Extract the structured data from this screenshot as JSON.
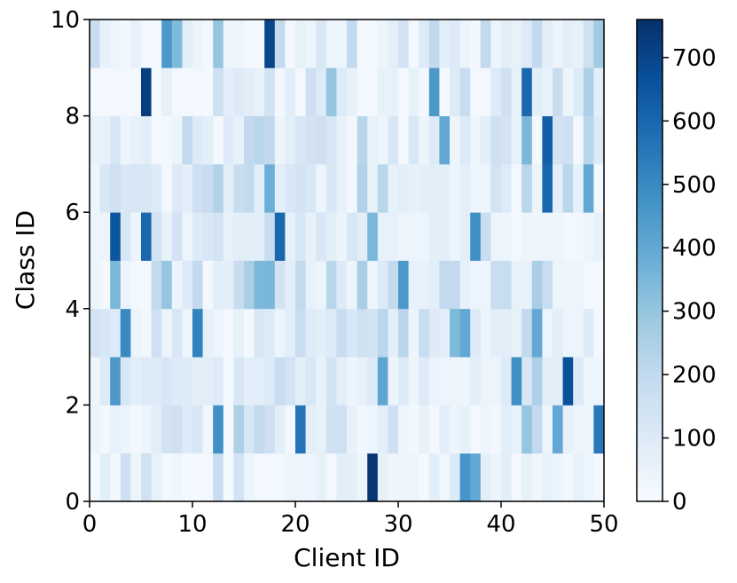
{
  "chart_data": {
    "type": "heatmap",
    "title": "",
    "xlabel": "Client ID",
    "ylabel": "Class ID",
    "xlim": [
      0,
      50
    ],
    "ylim": [
      0,
      10
    ],
    "x_ticks": [
      "0",
      "10",
      "20",
      "30",
      "40",
      "50"
    ],
    "y_ticks": [
      "0",
      "2",
      "4",
      "6",
      "8",
      "10"
    ],
    "colorbar": {
      "min": 0,
      "max": 760,
      "ticks": [
        "0",
        "100",
        "200",
        "300",
        "400",
        "500",
        "600",
        "700"
      ],
      "colormap": "Blues",
      "colors": [
        "#f7fbff",
        "#deebf7",
        "#c6dbef",
        "#9ecae1",
        "#6baed6",
        "#4292c6",
        "#2171b5",
        "#08519c",
        "#08306b"
      ]
    },
    "rows": [
      [
        20,
        80,
        20,
        160,
        40,
        150,
        60,
        20,
        30,
        10,
        10,
        20,
        180,
        10,
        140,
        40,
        20,
        20,
        20,
        40,
        40,
        40,
        60,
        20,
        80,
        70,
        40,
        740,
        60,
        30,
        40,
        40,
        10,
        80,
        30,
        100,
        460,
        400,
        80,
        40,
        80,
        20,
        60,
        30,
        60,
        40,
        20,
        60,
        40,
        20
      ],
      [
        40,
        20,
        60,
        40,
        20,
        40,
        80,
        140,
        150,
        100,
        120,
        30,
        480,
        20,
        250,
        130,
        200,
        160,
        80,
        20,
        560,
        70,
        60,
        150,
        160,
        60,
        20,
        40,
        80,
        160,
        40,
        20,
        60,
        20,
        80,
        40,
        60,
        20,
        40,
        20,
        80,
        60,
        300,
        200,
        40,
        400,
        60,
        40,
        40,
        550
      ],
      [
        40,
        100,
        450,
        120,
        80,
        100,
        100,
        120,
        100,
        100,
        80,
        80,
        100,
        20,
        120,
        80,
        80,
        100,
        180,
        140,
        80,
        120,
        60,
        140,
        80,
        40,
        60,
        100,
        410,
        40,
        100,
        40,
        100,
        50,
        40,
        40,
        40,
        80,
        40,
        40,
        100,
        480,
        120,
        250,
        80,
        80,
        660,
        100,
        40,
        40
      ],
      [
        140,
        120,
        100,
        500,
        40,
        20,
        160,
        40,
        120,
        40,
        520,
        60,
        40,
        20,
        60,
        20,
        120,
        100,
        40,
        80,
        180,
        100,
        80,
        100,
        180,
        120,
        160,
        140,
        220,
        80,
        220,
        40,
        180,
        100,
        80,
        340,
        400,
        100,
        40,
        80,
        80,
        60,
        200,
        400,
        40,
        80,
        40,
        40,
        100,
        20
      ],
      [
        40,
        20,
        350,
        40,
        20,
        20,
        200,
        300,
        40,
        100,
        200,
        20,
        80,
        80,
        180,
        260,
        350,
        350,
        140,
        80,
        200,
        60,
        40,
        220,
        100,
        40,
        260,
        40,
        100,
        200,
        450,
        60,
        60,
        80,
        200,
        200,
        60,
        40,
        40,
        180,
        180,
        60,
        60,
        260,
        180,
        40,
        40,
        40,
        20,
        20
      ],
      [
        40,
        40,
        650,
        120,
        40,
        600,
        140,
        60,
        140,
        40,
        100,
        120,
        140,
        60,
        80,
        80,
        80,
        180,
        600,
        60,
        120,
        60,
        120,
        80,
        40,
        120,
        80,
        350,
        60,
        60,
        40,
        40,
        40,
        80,
        80,
        40,
        80,
        480,
        180,
        40,
        40,
        20,
        40,
        40,
        40,
        40,
        20,
        20,
        40,
        60
      ],
      [
        40,
        120,
        160,
        120,
        120,
        120,
        100,
        20,
        100,
        80,
        160,
        180,
        240,
        80,
        180,
        200,
        80,
        380,
        80,
        120,
        140,
        120,
        40,
        120,
        60,
        20,
        240,
        60,
        220,
        60,
        80,
        60,
        80,
        80,
        80,
        40,
        80,
        40,
        40,
        140,
        100,
        20,
        220,
        40,
        600,
        80,
        220,
        60,
        400,
        20
      ],
      [
        60,
        60,
        120,
        40,
        60,
        80,
        20,
        20,
        40,
        200,
        100,
        80,
        20,
        100,
        60,
        200,
        220,
        200,
        40,
        80,
        120,
        140,
        160,
        120,
        60,
        20,
        220,
        60,
        40,
        120,
        20,
        120,
        40,
        100,
        400,
        40,
        100,
        40,
        80,
        160,
        140,
        60,
        350,
        20,
        620,
        140,
        160,
        20,
        220,
        100
      ],
      [
        20,
        20,
        20,
        20,
        20,
        720,
        20,
        60,
        20,
        20,
        20,
        20,
        160,
        80,
        100,
        80,
        60,
        140,
        20,
        80,
        20,
        160,
        100,
        300,
        100,
        60,
        20,
        20,
        60,
        60,
        20,
        60,
        20,
        450,
        20,
        100,
        180,
        20,
        20,
        100,
        160,
        60,
        600,
        80,
        60,
        180,
        40,
        100,
        250,
        80
      ],
      [
        180,
        60,
        40,
        20,
        60,
        20,
        20,
        450,
        340,
        80,
        40,
        20,
        300,
        40,
        40,
        20,
        20,
        700,
        200,
        20,
        60,
        40,
        120,
        40,
        40,
        200,
        20,
        20,
        40,
        80,
        140,
        20,
        100,
        200,
        80,
        100,
        40,
        20,
        200,
        40,
        80,
        60,
        100,
        200,
        80,
        40,
        80,
        60,
        160,
        280
      ]
    ]
  }
}
